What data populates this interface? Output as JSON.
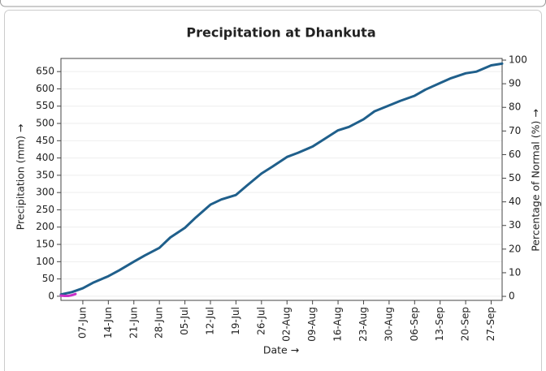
{
  "chart_data": {
    "type": "line",
    "title": "Precipitation at Dhankuta",
    "xlabel": "Date →",
    "ylabel": "Precipitation (mm) →",
    "y2label": "Percentage of Normal (%) →",
    "xlim": [
      "01-Jun",
      "30-Sep"
    ],
    "xticks": [
      "07-Jun",
      "14-Jun",
      "21-Jun",
      "28-Jun",
      "05-Jul",
      "12-Jul",
      "19-Jul",
      "26-Jul",
      "02-Aug",
      "09-Aug",
      "16-Aug",
      "23-Aug",
      "30-Aug",
      "06-Sep",
      "13-Sep",
      "20-Sep",
      "27-Sep"
    ],
    "ylim": [
      -12,
      688
    ],
    "yticks": [
      0,
      50,
      100,
      150,
      200,
      250,
      300,
      350,
      400,
      450,
      500,
      550,
      600,
      650
    ],
    "y2lim": [
      -1.7,
      100.7
    ],
    "y2ticks": [
      0,
      10,
      20,
      30,
      40,
      50,
      60,
      70,
      80,
      90,
      100
    ],
    "grid": true,
    "series": [
      {
        "color": "#1f5f8b",
        "x": [
          "01-Jun",
          "04-Jun",
          "07-Jun",
          "10-Jun",
          "14-Jun",
          "17-Jun",
          "21-Jun",
          "24-Jun",
          "28-Jun",
          "01-Jul",
          "05-Jul",
          "08-Jul",
          "12-Jul",
          "15-Jul",
          "19-Jul",
          "22-Jul",
          "26-Jul",
          "29-Jul",
          "02-Aug",
          "05-Aug",
          "09-Aug",
          "12-Aug",
          "16-Aug",
          "19-Aug",
          "23-Aug",
          "26-Aug",
          "30-Aug",
          "02-Sep",
          "06-Sep",
          "09-Sep",
          "13-Sep",
          "16-Sep",
          "20-Sep",
          "23-Sep",
          "27-Sep",
          "30-Sep"
        ],
        "values": [
          5,
          12,
          23,
          40,
          58,
          75,
          100,
          118,
          140,
          170,
          198,
          228,
          265,
          280,
          293,
          320,
          355,
          375,
          403,
          415,
          433,
          453,
          480,
          490,
          512,
          535,
          552,
          565,
          580,
          598,
          617,
          631,
          645,
          650,
          668,
          673
        ]
      },
      {
        "color": "#c832c8",
        "axis": "y2",
        "x": [
          "01-Jun",
          "02-Jun",
          "03-Jun",
          "04-Jun",
          "05-Jun"
        ],
        "values": [
          0.3,
          0.2,
          0.2,
          0.5,
          1
        ]
      }
    ]
  }
}
